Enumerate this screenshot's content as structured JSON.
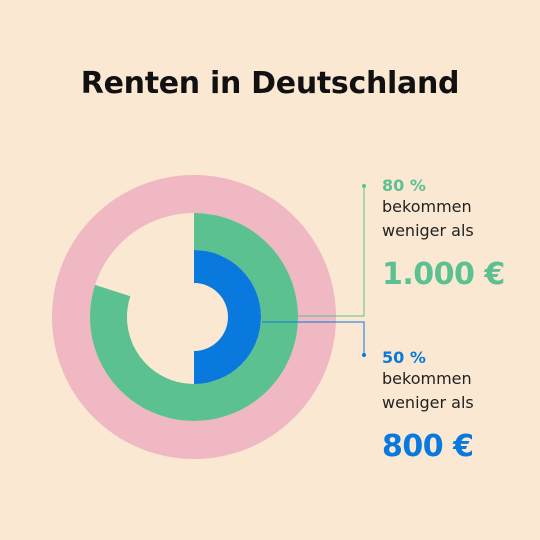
{
  "title": "Renten in Deutschland",
  "colors": {
    "background": "#fbe8d2",
    "outer_ring": "#efb8c2",
    "middle_ring": "#5cc191",
    "inner_ring": "#0a79de"
  },
  "chart_data": {
    "type": "pie",
    "title": "Renten in Deutschland",
    "rings": [
      {
        "ring": "outer",
        "percent": 100,
        "color": "#efb8c2"
      },
      {
        "ring": "middle",
        "percent": 80,
        "color": "#5cc191"
      },
      {
        "ring": "inner",
        "percent": 50,
        "color": "#0a79de"
      }
    ],
    "annotations": [
      {
        "percent_label": "80 %",
        "line1": "bekommen",
        "line2": "weniger als",
        "amount": "1.000 €",
        "color": "#5cc191"
      },
      {
        "percent_label": "50 %",
        "line1": "bekommen",
        "line2": "weniger als",
        "amount": "800 €",
        "color": "#0a79de"
      }
    ]
  }
}
